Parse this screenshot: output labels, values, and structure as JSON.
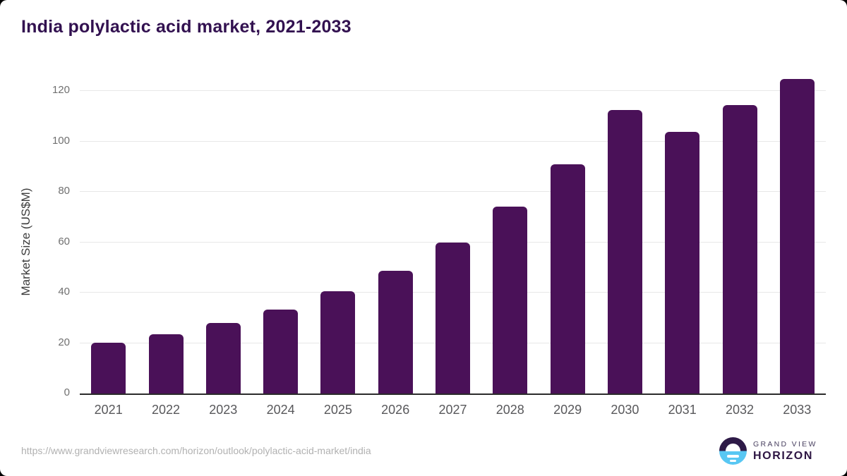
{
  "chart_data": {
    "type": "bar",
    "title": "India polylactic acid market, 2021-2033",
    "categories": [
      "2021",
      "2022",
      "2023",
      "2024",
      "2025",
      "2026",
      "2027",
      "2028",
      "2029",
      "2030",
      "2031",
      "2032",
      "2033"
    ],
    "values": [
      20.2,
      23.6,
      28.0,
      33.2,
      40.5,
      48.8,
      60.0,
      74.0,
      90.8,
      112.5,
      103.8,
      114.3,
      124.7
    ],
    "xlabel": "",
    "ylabel": "Market Size (US$M)",
    "yticks": [
      0,
      20,
      40,
      60,
      80,
      100,
      120
    ],
    "ylim": [
      0,
      130
    ],
    "grid": "horizontal-only",
    "legend": "none",
    "bar_color": "#4a1158"
  },
  "footer": {
    "source_url": "https://www.grandviewresearch.com/horizon/outlook/polylactic-acid-market/india",
    "logo": {
      "line1": "GRAND VIEW",
      "line2": "HORIZON"
    }
  },
  "colors": {
    "title": "#321150",
    "bar": "#4a1158",
    "gridline": "#e7e7e7",
    "axis_line": "#2b2b2b",
    "logo_purple": "#2e1a47",
    "logo_blue": "#58c7f3"
  }
}
